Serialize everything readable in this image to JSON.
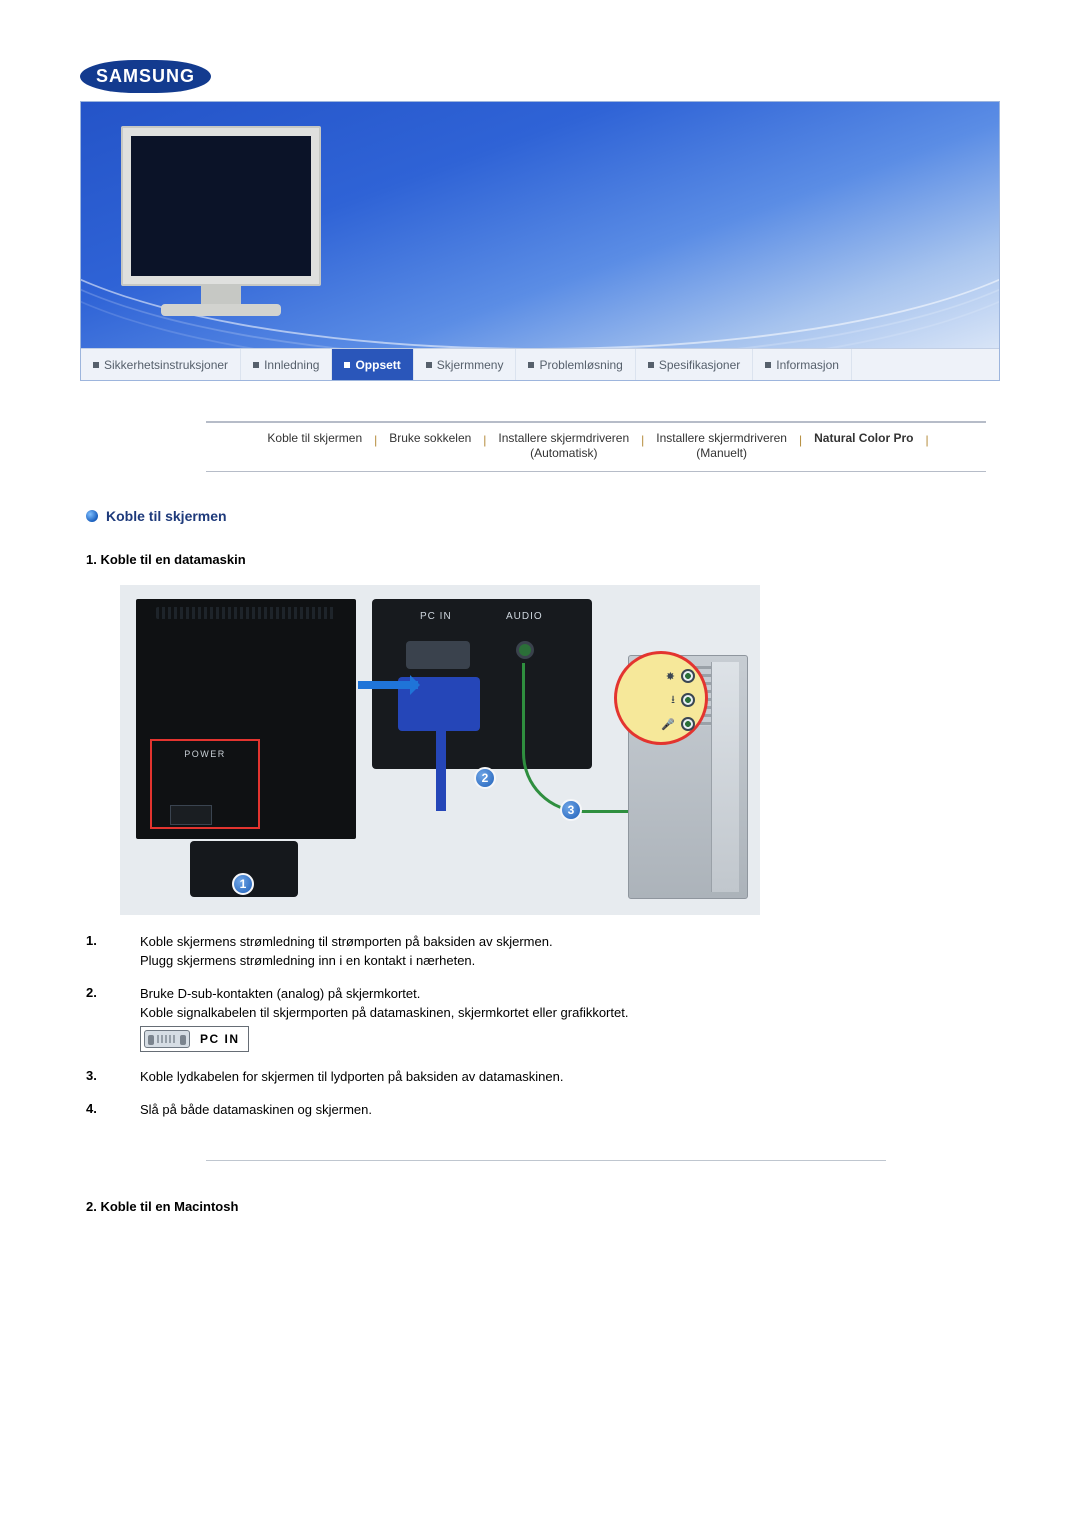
{
  "brand": "SAMSUNG",
  "colors": {
    "brand_blue": "#133b8f",
    "accent_red": "#e3342f",
    "marker_blue": "#1f60b9",
    "audio_green": "#2f8f3f",
    "heading_blue": "#1e3a7b"
  },
  "tabs": [
    {
      "label": "Sikkerhetsinstruksjoner",
      "active": false
    },
    {
      "label": "Innledning",
      "active": false
    },
    {
      "label": "Oppsett",
      "active": true
    },
    {
      "label": "Skjermmeny",
      "active": false
    },
    {
      "label": "Problemløsning",
      "active": false
    },
    {
      "label": "Spesifikasjoner",
      "active": false
    },
    {
      "label": "Informasjon",
      "active": false
    }
  ],
  "subnav": {
    "items": [
      {
        "line1": "Koble til skjermen",
        "line2": "",
        "bold": false
      },
      {
        "line1": "Bruke sokkelen",
        "line2": "",
        "bold": false
      },
      {
        "line1": "Installere skjermdriveren",
        "line2": "(Automatisk)",
        "bold": false
      },
      {
        "line1": "Installere skjermdriveren",
        "line2": "(Manuelt)",
        "bold": false
      },
      {
        "line1": "Natural Color Pro",
        "line2": "",
        "bold": true
      }
    ]
  },
  "section_title": "Koble til skjermen",
  "sub1": "1. Koble til en datamaskin",
  "sub2": "2. Koble til en Macintosh",
  "diagram": {
    "labels": {
      "power": "POWER",
      "pc_in": "PC IN",
      "audio": "AUDIO"
    },
    "markers": [
      "1",
      "2",
      "3"
    ]
  },
  "steps": [
    {
      "n": "1.",
      "lines": [
        "Koble skjermens strømledning til strømporten på baksiden av skjermen.",
        "Plugg skjermens strømledning inn i en kontakt i nærheten."
      ]
    },
    {
      "n": "2.",
      "lines": [
        "Bruke D-sub-kontakten (analog) på skjermkortet.",
        "Koble signalkabelen til skjermporten på datamaskinen, skjermkortet eller grafikkortet."
      ],
      "pcin": "PC  IN"
    },
    {
      "n": "3.",
      "lines": [
        "Koble lydkabelen for skjermen til lydporten på baksiden av datamaskinen."
      ]
    },
    {
      "n": "4.",
      "lines": [
        "Slå på både datamaskinen og skjermen."
      ]
    }
  ]
}
